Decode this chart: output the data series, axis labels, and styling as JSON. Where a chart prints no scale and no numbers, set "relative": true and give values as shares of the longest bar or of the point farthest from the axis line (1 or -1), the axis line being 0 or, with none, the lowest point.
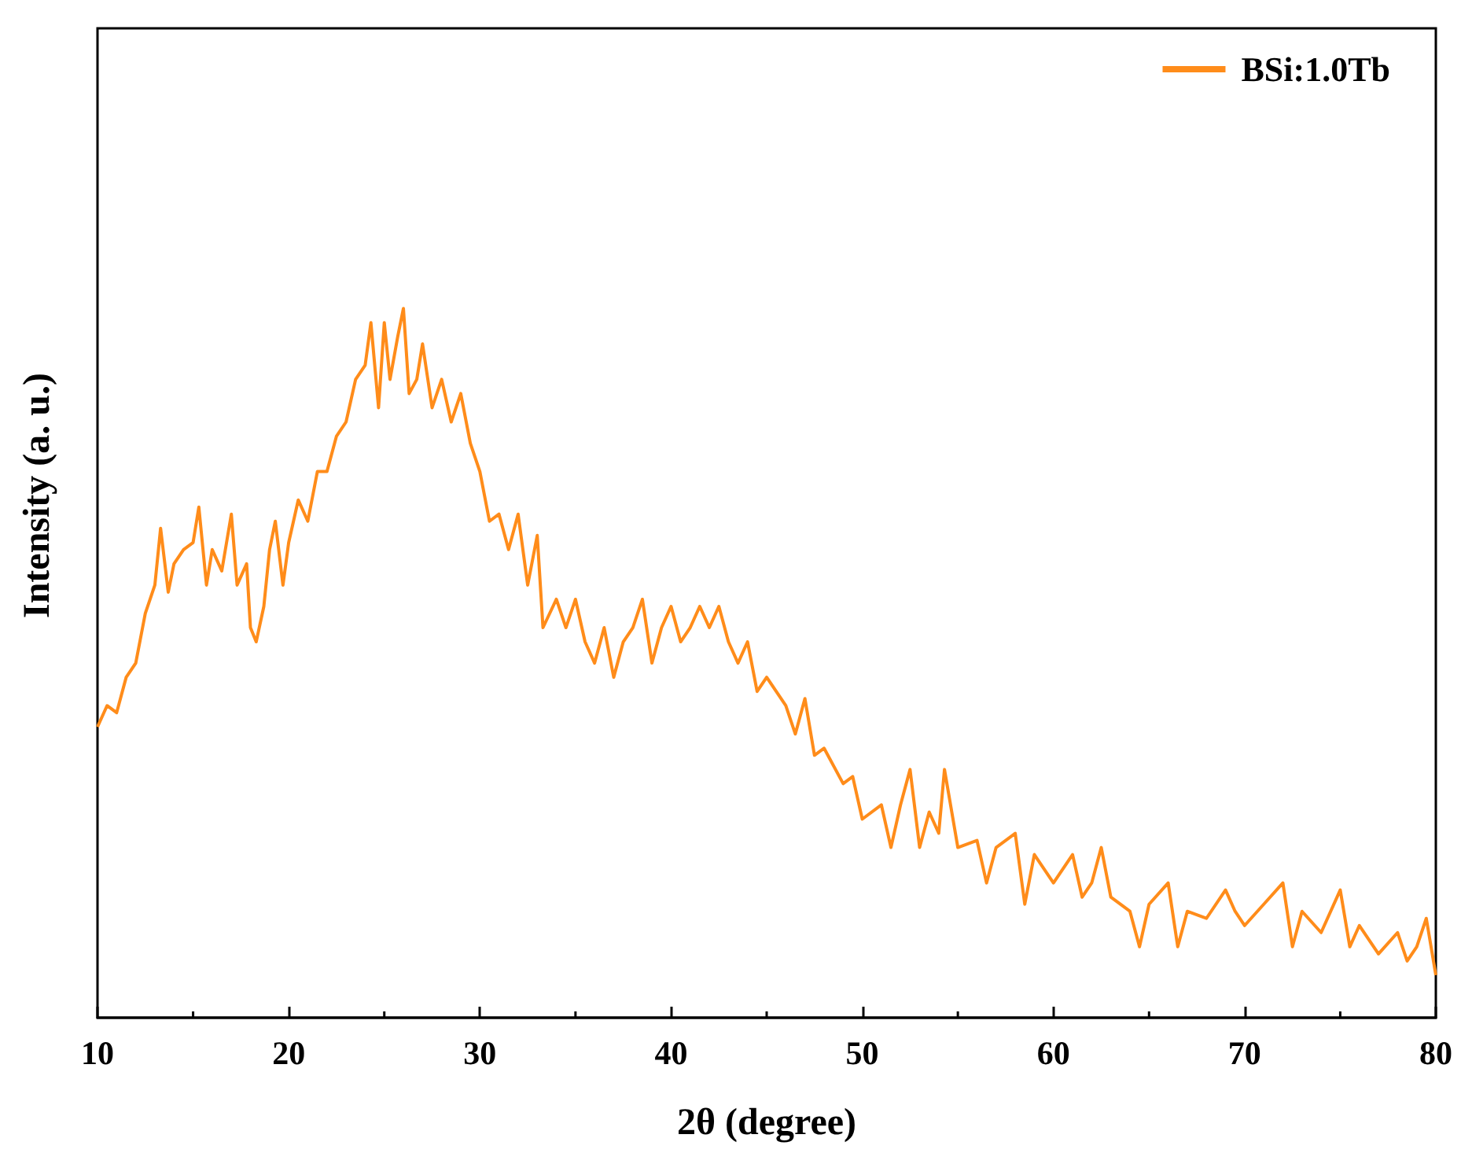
{
  "chart_data": {
    "type": "line",
    "xlabel": "2θ (degree)",
    "ylabel": "Intensity (a. u.)",
    "relative": true,
    "legend": "top right",
    "grid": false,
    "xlim": [
      10,
      80
    ],
    "xticks": [
      10,
      20,
      30,
      40,
      50,
      60,
      70,
      80
    ],
    "series": [
      {
        "name": "BSi:1.0Tb",
        "color": "#ff8c1a",
        "x": [
          10,
          10.5,
          11,
          11.5,
          12,
          12.5,
          13,
          13.3,
          13.7,
          14,
          14.5,
          15,
          15.3,
          15.7,
          16,
          16.5,
          17,
          17.3,
          17.8,
          18,
          18.3,
          18.7,
          19,
          19.3,
          19.7,
          20,
          20.5,
          21,
          21.5,
          22,
          22.5,
          23,
          23.5,
          24,
          24.3,
          24.7,
          25,
          25.3,
          25.7,
          26,
          26.3,
          26.7,
          27,
          27.5,
          28,
          28.5,
          29,
          29.5,
          30,
          30.5,
          31,
          31.5,
          32,
          32.5,
          33,
          33.3,
          34,
          34.5,
          35,
          35.5,
          36,
          36.5,
          37,
          37.5,
          38,
          38.5,
          39,
          39.5,
          40,
          40.5,
          41,
          41.5,
          42,
          42.5,
          43,
          43.5,
          44,
          44.5,
          45,
          46,
          46.5,
          47,
          47.5,
          48,
          49,
          49.5,
          50,
          51,
          51.5,
          52,
          52.5,
          53,
          53.5,
          54,
          54.3,
          55,
          56,
          56.5,
          57,
          58,
          58.5,
          59,
          60,
          61,
          61.5,
          62,
          62.5,
          63,
          64,
          64.5,
          65,
          66,
          66.5,
          67,
          68,
          69,
          69.5,
          70,
          71,
          72,
          72.5,
          73,
          74,
          75,
          75.5,
          76,
          77,
          78,
          78.5,
          79,
          79.5,
          80
        ],
        "values": [
          0.41,
          0.44,
          0.43,
          0.48,
          0.5,
          0.57,
          0.61,
          0.69,
          0.6,
          0.64,
          0.66,
          0.67,
          0.72,
          0.61,
          0.66,
          0.63,
          0.71,
          0.61,
          0.64,
          0.55,
          0.53,
          0.58,
          0.66,
          0.7,
          0.61,
          0.67,
          0.73,
          0.7,
          0.77,
          0.77,
          0.82,
          0.84,
          0.9,
          0.92,
          0.98,
          0.86,
          0.98,
          0.9,
          0.96,
          1,
          0.88,
          0.9,
          0.95,
          0.86,
          0.9,
          0.84,
          0.88,
          0.81,
          0.77,
          0.7,
          0.71,
          0.66,
          0.71,
          0.61,
          0.68,
          0.55,
          0.59,
          0.55,
          0.59,
          0.53,
          0.5,
          0.55,
          0.48,
          0.53,
          0.55,
          0.59,
          0.5,
          0.55,
          0.58,
          0.53,
          0.55,
          0.58,
          0.55,
          0.58,
          0.53,
          0.5,
          0.53,
          0.46,
          0.48,
          0.44,
          0.4,
          0.45,
          0.37,
          0.38,
          0.33,
          0.34,
          0.28,
          0.3,
          0.24,
          0.3,
          0.35,
          0.24,
          0.29,
          0.26,
          0.35,
          0.24,
          0.25,
          0.19,
          0.24,
          0.26,
          0.16,
          0.23,
          0.19,
          0.23,
          0.17,
          0.19,
          0.24,
          0.17,
          0.15,
          0.1,
          0.16,
          0.19,
          0.1,
          0.15,
          0.14,
          0.18,
          0.15,
          0.13,
          0.16,
          0.19,
          0.1,
          0.15,
          0.12,
          0.18,
          0.1,
          0.13,
          0.09,
          0.12,
          0.08,
          0.1,
          0.14,
          0.06
        ]
      }
    ]
  }
}
